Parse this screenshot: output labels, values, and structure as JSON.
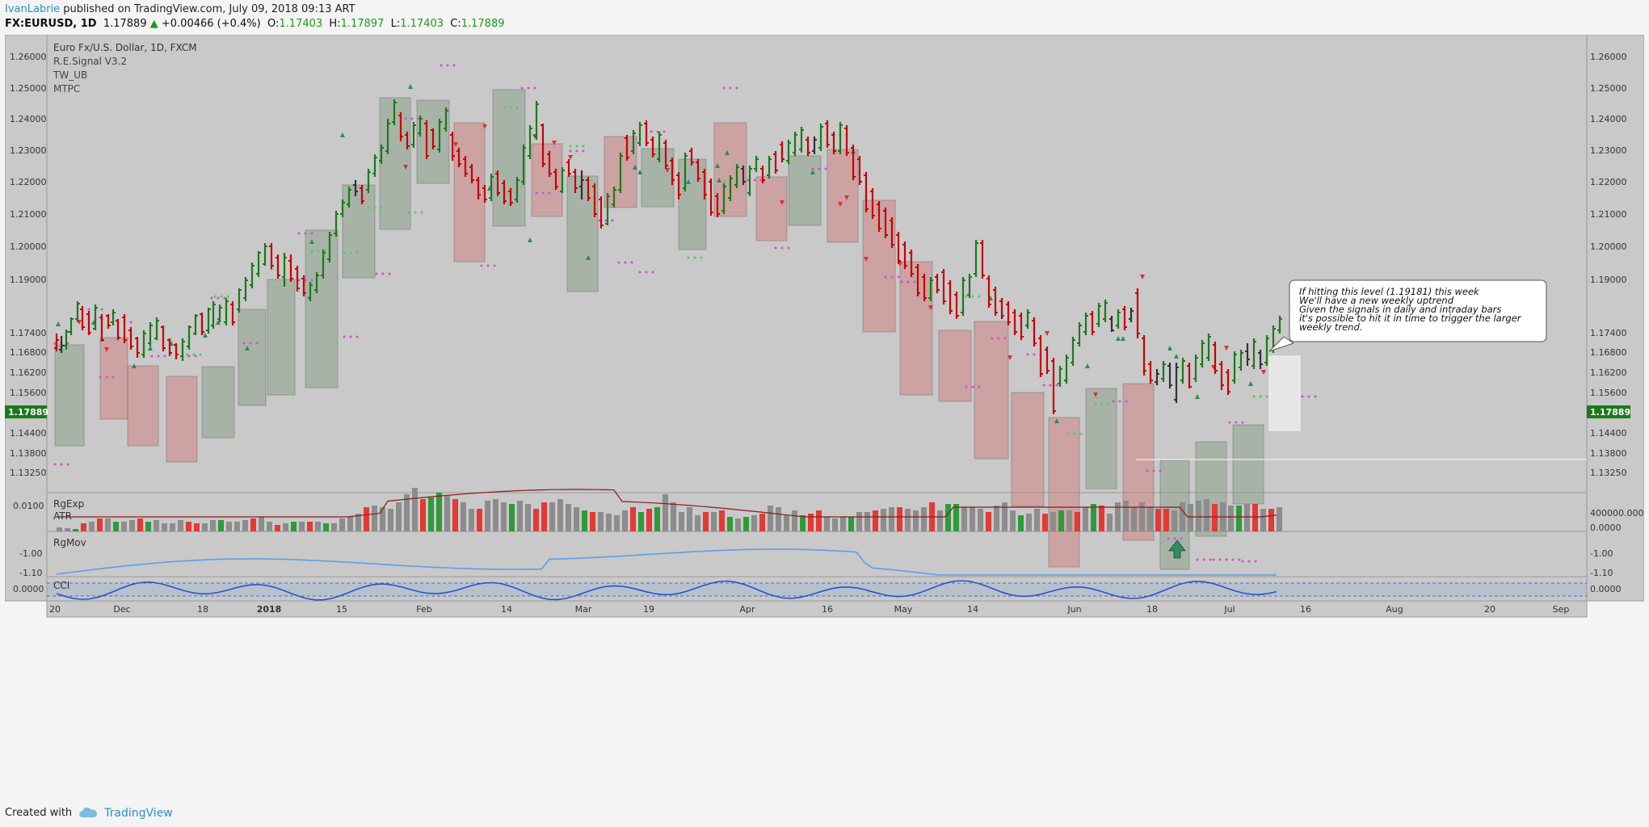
{
  "header": {
    "author": "IvanLabrie",
    "published_text": "published on TradingView.com, July 09, 2018 09:13 ART",
    "symbol": "FX:EURUSD, 1D",
    "last": "1.17889",
    "change": "+0.00466 (+0.4%)",
    "open_label": "O:",
    "open": "1.17403",
    "high_label": "H:",
    "high": "1.17897",
    "low_label": "L:",
    "low": "1.17403",
    "close_label": "C:",
    "close": "1.17889"
  },
  "legend": {
    "title": "Euro Fx/U.S. Dollar, 1D, FXCM",
    "indicators": [
      "R.E.Signal V3.2",
      "TW_UB",
      "MTPC"
    ]
  },
  "price_axis": {
    "ticks": [
      "1.26000",
      "1.25000",
      "1.24000",
      "1.23000",
      "1.22000",
      "1.21000",
      "1.20000",
      "1.19000",
      "1.17400",
      "1.16800",
      "1.16200",
      "1.15600",
      "1.15000",
      "1.14400",
      "1.13800",
      "1.13250"
    ],
    "last_label": "1.17889",
    "hline_label": "1.16800",
    "up_color": "#1a7a1a",
    "down_color": "#c80000",
    "neutral_color": "#333333"
  },
  "annotation": {
    "lines": [
      "If hitting this level (1.19181) this week",
      "We'll have a new weekly uptrend",
      "Given the signals in daily and intraday bars",
      "it's possible to hit it in time to trigger the larger",
      "weekly trend."
    ]
  },
  "panes": {
    "pane1": {
      "labels": [
        "RgExp",
        "ATR"
      ],
      "left_tick": "0.0100",
      "right_ticks": [
        "400000.0000",
        "0.0000"
      ]
    },
    "pane2": {
      "labels": [
        "RgMov"
      ],
      "left_ticks": [
        "-1.00",
        "-1.10"
      ],
      "right_ticks": [
        "-1.00",
        "-1.10"
      ]
    },
    "pane3": {
      "labels": [
        "CCI"
      ],
      "left_tick": "0.0000",
      "right_tick": "0.0000"
    }
  },
  "time_axis": {
    "labels": [
      "20",
      "Dec",
      "18",
      "2018",
      "15",
      "Feb",
      "14",
      "Mar",
      "19",
      "Apr",
      "16",
      "May",
      "14",
      "Jun",
      "18",
      "Jul",
      "16",
      "Aug",
      "20",
      "Sep"
    ],
    "bold": [
      "2018"
    ]
  },
  "footer": {
    "created_with": "Created with",
    "brand": "TradingView",
    "icon": "tradingview-cloud-icon"
  }
}
